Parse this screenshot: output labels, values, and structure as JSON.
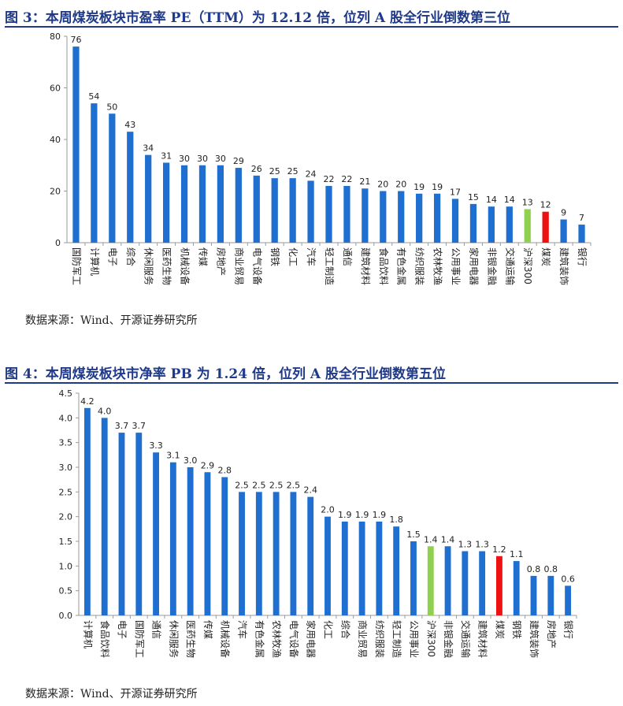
{
  "colors": {
    "bar": "#1f6fd0",
    "highlight_index": "#8fd14f",
    "highlight_coal": "#ee1111",
    "title": "#1f3a8a",
    "axis": "#9a9a9a"
  },
  "figure1": {
    "title": "图 3：本周煤炭板块市盈率 PE（TTM）为 12.12 倍，位列 A 股全行业倒数第三位",
    "source": "数据来源：Wind、开源证券研究所"
  },
  "figure2": {
    "title": "图 4：本周煤炭板块市净率 PB 为 1.24 倍，位列 A 股全行业倒数第五位",
    "source": "数据来源：Wind、开源证券研究所"
  },
  "chart_data": [
    {
      "type": "bar",
      "title": "图 3：本周煤炭板块市盈率 PE（TTM）为 12.12 倍，位列 A 股全行业倒数第三位",
      "categories": [
        "国防军工",
        "计算机",
        "电子",
        "综合",
        "休闲服务",
        "医药生物",
        "机械设备",
        "传媒",
        "房地产",
        "商业贸易",
        "电气设备",
        "钢铁",
        "化工",
        "汽车",
        "轻工制造",
        "通信",
        "建筑材料",
        "食品饮料",
        "有色金属",
        "纺织服装",
        "农林牧渔",
        "公用事业",
        "家用电器",
        "非银金融",
        "交通运输",
        "沪深300",
        "煤炭",
        "建筑装饰",
        "银行"
      ],
      "values": [
        76,
        54,
        50,
        43,
        34,
        31,
        30,
        30,
        30,
        29,
        26,
        25,
        25,
        24,
        22,
        22,
        21,
        20,
        20,
        19,
        19,
        17,
        15,
        14,
        14,
        13,
        12,
        9,
        7
      ],
      "value_labels": [
        "76",
        "54",
        "50",
        "43",
        "34",
        "31",
        "30",
        "30",
        "30",
        "29",
        "26",
        "25",
        "25",
        "24",
        "22",
        "22",
        "21",
        "20",
        "20",
        "19",
        "19",
        "17",
        "15",
        "14",
        "14",
        "13",
        "12",
        "9",
        "7"
      ],
      "highlights": {
        "沪深300": "green",
        "煤炭": "red"
      },
      "ylim": [
        0,
        80
      ],
      "yticks": [
        "0",
        "20",
        "40",
        "60",
        "80"
      ],
      "ytick_values": [
        0,
        20,
        40,
        60,
        80
      ],
      "grid": false,
      "legend": "none"
    },
    {
      "type": "bar",
      "title": "图 4：本周煤炭板块市净率 PB 为 1.24 倍，位列 A 股全行业倒数第五位",
      "categories": [
        "计算机",
        "食品饮料",
        "电子",
        "国防军工",
        "通信",
        "休闲服务",
        "医药生物",
        "传媒",
        "机械设备",
        "汽车",
        "有色金属",
        "农林牧渔",
        "电气设备",
        "家用电器",
        "化工",
        "综合",
        "商业贸易",
        "纺织服装",
        "轻工制造",
        "公用事业",
        "沪深300",
        "非银金融",
        "交通运输",
        "建筑材料",
        "煤炭",
        "钢铁",
        "建筑装饰",
        "房地产",
        "银行"
      ],
      "values": [
        4.2,
        4.0,
        3.7,
        3.7,
        3.3,
        3.1,
        3.0,
        2.9,
        2.8,
        2.5,
        2.5,
        2.5,
        2.5,
        2.4,
        2.0,
        1.9,
        1.9,
        1.9,
        1.8,
        1.5,
        1.4,
        1.4,
        1.3,
        1.3,
        1.2,
        1.1,
        0.8,
        0.8,
        0.6
      ],
      "value_labels": [
        "4.2",
        "4.0",
        "3.7",
        "3.7",
        "3.3",
        "3.1",
        "3.0",
        "2.9",
        "2.8",
        "2.5",
        "2.5",
        "2.5",
        "2.5",
        "2.4",
        "2.0",
        "1.9",
        "1.9",
        "1.9",
        "1.8",
        "1.5",
        "1.4",
        "1.4",
        "1.3",
        "1.3",
        "1.2",
        "1.1",
        "0.8",
        "0.8",
        "0.6"
      ],
      "highlights": {
        "沪深300": "green",
        "煤炭": "red"
      },
      "ylim": [
        0,
        4.5
      ],
      "yticks": [
        "0.0",
        "0.5",
        "1.0",
        "1.5",
        "2.0",
        "2.5",
        "3.0",
        "3.5",
        "4.0",
        "4.5"
      ],
      "ytick_values": [
        0,
        0.5,
        1.0,
        1.5,
        2.0,
        2.5,
        3.0,
        3.5,
        4.0,
        4.5
      ],
      "grid": false,
      "legend": "none"
    }
  ]
}
